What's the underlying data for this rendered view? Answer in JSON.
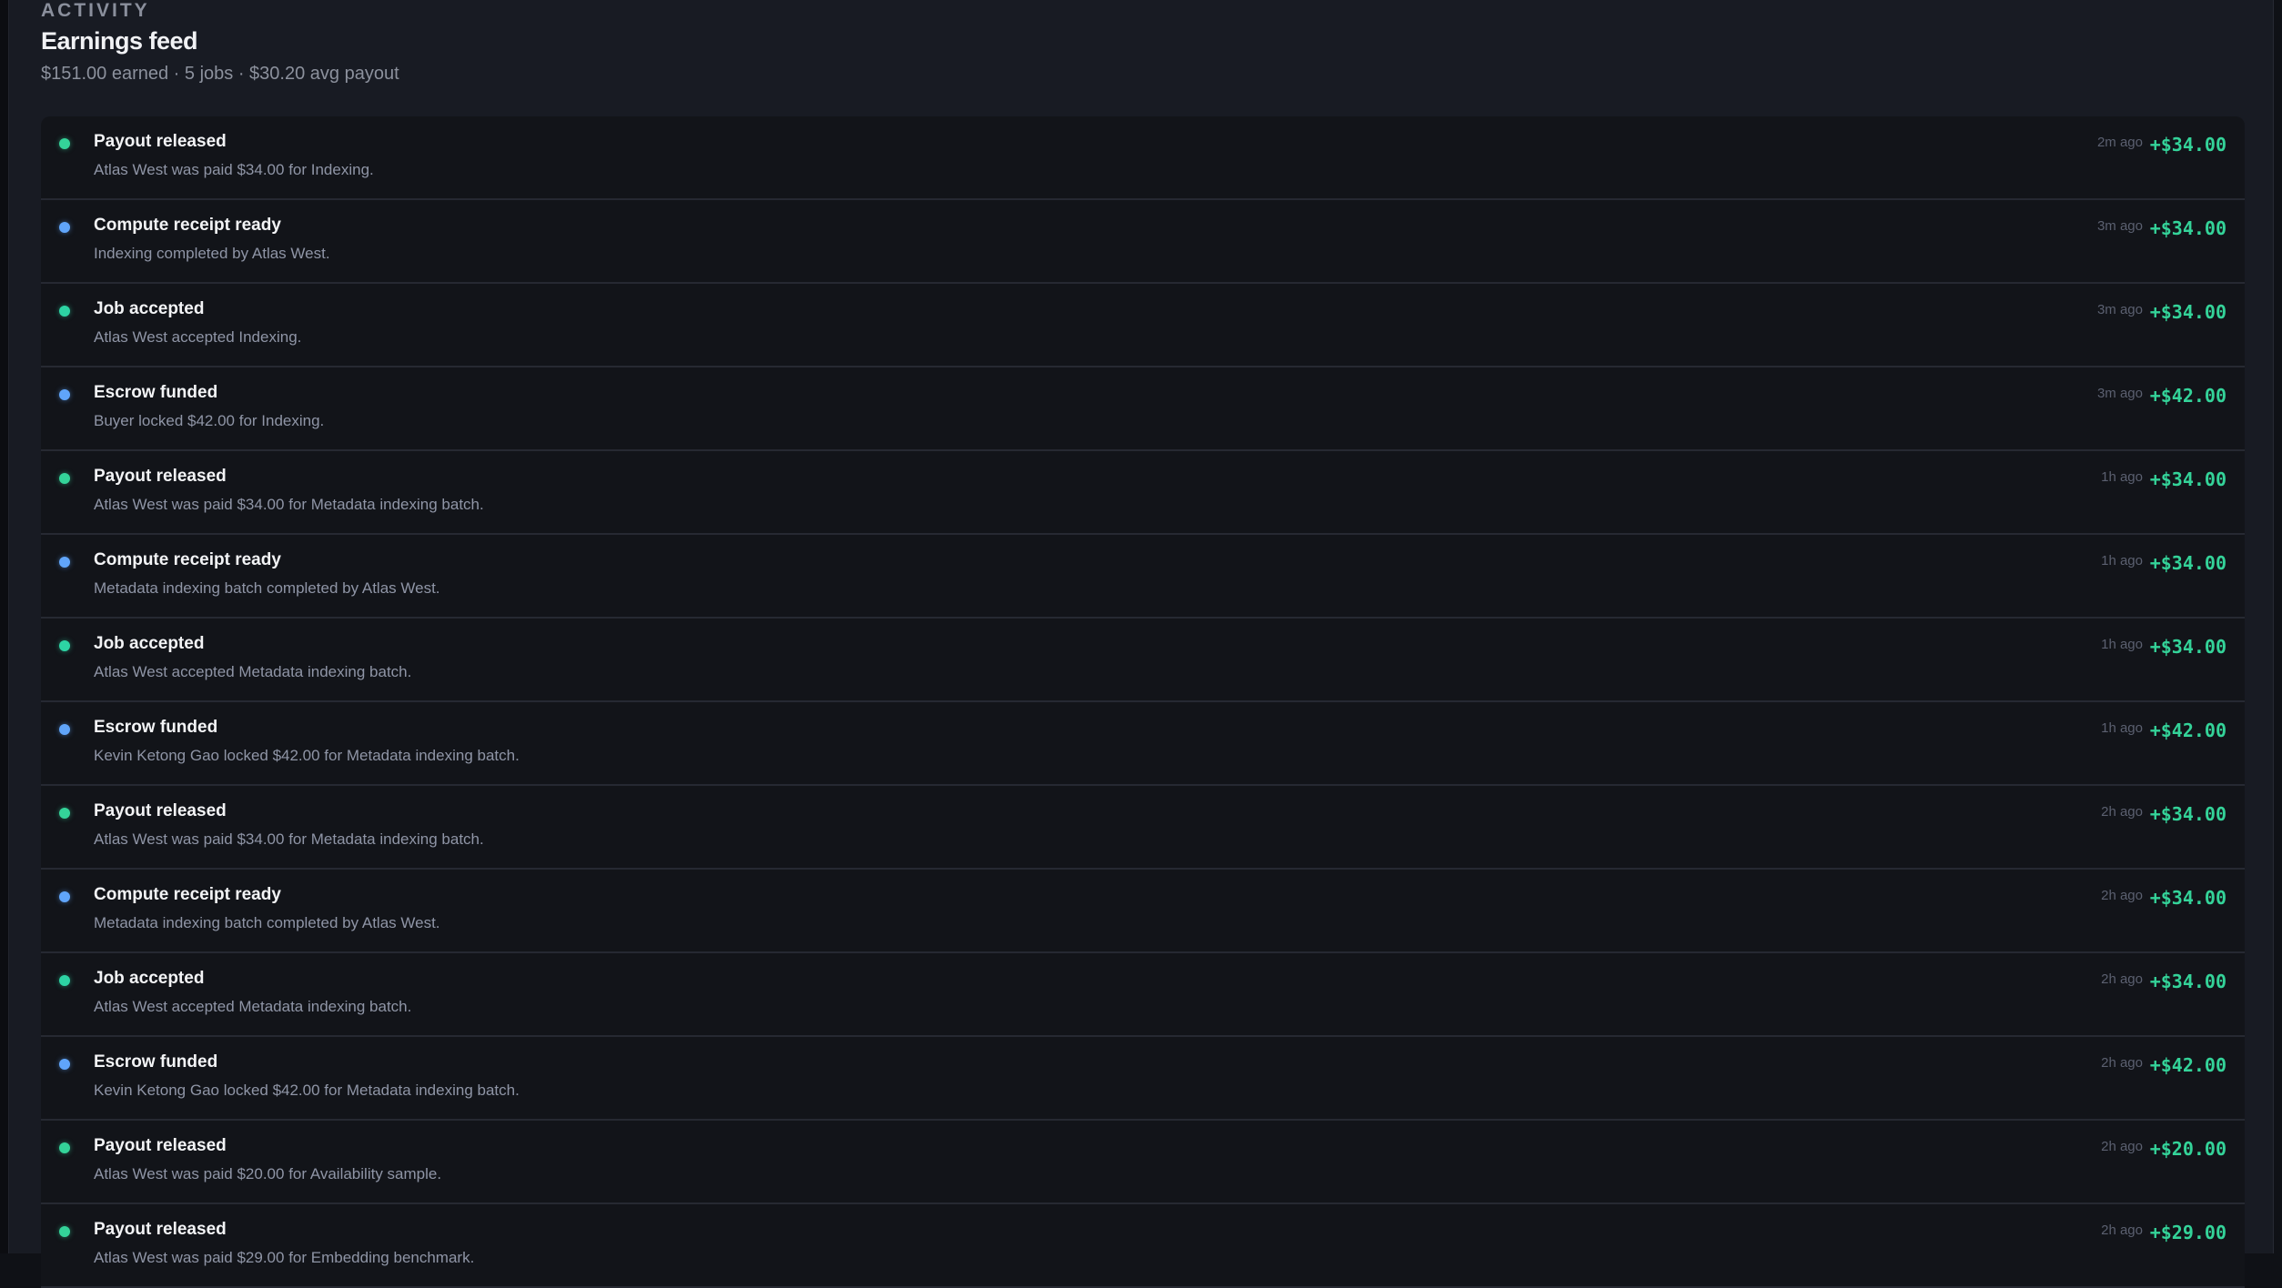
{
  "header": {
    "eyebrow": "ACTIVITY",
    "title": "Earnings feed",
    "summary": "$151.00 earned · 5 jobs · $30.20 avg payout"
  },
  "colors": {
    "payout": "#34d399",
    "accepted": "#2dd4a4",
    "info": "#60a5fa",
    "amount": "#34d399"
  },
  "feed": [
    {
      "kind": "payout",
      "title": "Payout released",
      "desc": "Atlas West was paid $34.00 for Indexing.",
      "time": "2m ago",
      "amount": "+$34.00"
    },
    {
      "kind": "info",
      "title": "Compute receipt ready",
      "desc": "Indexing completed by Atlas West.",
      "time": "3m ago",
      "amount": "+$34.00"
    },
    {
      "kind": "accepted",
      "title": "Job accepted",
      "desc": "Atlas West accepted Indexing.",
      "time": "3m ago",
      "amount": "+$34.00"
    },
    {
      "kind": "info",
      "title": "Escrow funded",
      "desc": "Buyer locked $42.00 for Indexing.",
      "time": "3m ago",
      "amount": "+$42.00"
    },
    {
      "kind": "payout",
      "title": "Payout released",
      "desc": "Atlas West was paid $34.00 for Metadata indexing batch.",
      "time": "1h ago",
      "amount": "+$34.00"
    },
    {
      "kind": "info",
      "title": "Compute receipt ready",
      "desc": "Metadata indexing batch completed by Atlas West.",
      "time": "1h ago",
      "amount": "+$34.00"
    },
    {
      "kind": "accepted",
      "title": "Job accepted",
      "desc": "Atlas West accepted Metadata indexing batch.",
      "time": "1h ago",
      "amount": "+$34.00"
    },
    {
      "kind": "info",
      "title": "Escrow funded",
      "desc": "Kevin Ketong Gao locked $42.00 for Metadata indexing batch.",
      "time": "1h ago",
      "amount": "+$42.00"
    },
    {
      "kind": "payout",
      "title": "Payout released",
      "desc": "Atlas West was paid $34.00 for Metadata indexing batch.",
      "time": "2h ago",
      "amount": "+$34.00"
    },
    {
      "kind": "info",
      "title": "Compute receipt ready",
      "desc": "Metadata indexing batch completed by Atlas West.",
      "time": "2h ago",
      "amount": "+$34.00"
    },
    {
      "kind": "accepted",
      "title": "Job accepted",
      "desc": "Atlas West accepted Metadata indexing batch.",
      "time": "2h ago",
      "amount": "+$34.00"
    },
    {
      "kind": "info",
      "title": "Escrow funded",
      "desc": "Kevin Ketong Gao locked $42.00 for Metadata indexing batch.",
      "time": "2h ago",
      "amount": "+$42.00"
    },
    {
      "kind": "payout",
      "title": "Payout released",
      "desc": "Atlas West was paid $20.00 for Availability sample.",
      "time": "2h ago",
      "amount": "+$20.00"
    },
    {
      "kind": "payout",
      "title": "Payout released",
      "desc": "Atlas West was paid $29.00 for Embedding benchmark.",
      "time": "2h ago",
      "amount": "+$29.00"
    }
  ]
}
